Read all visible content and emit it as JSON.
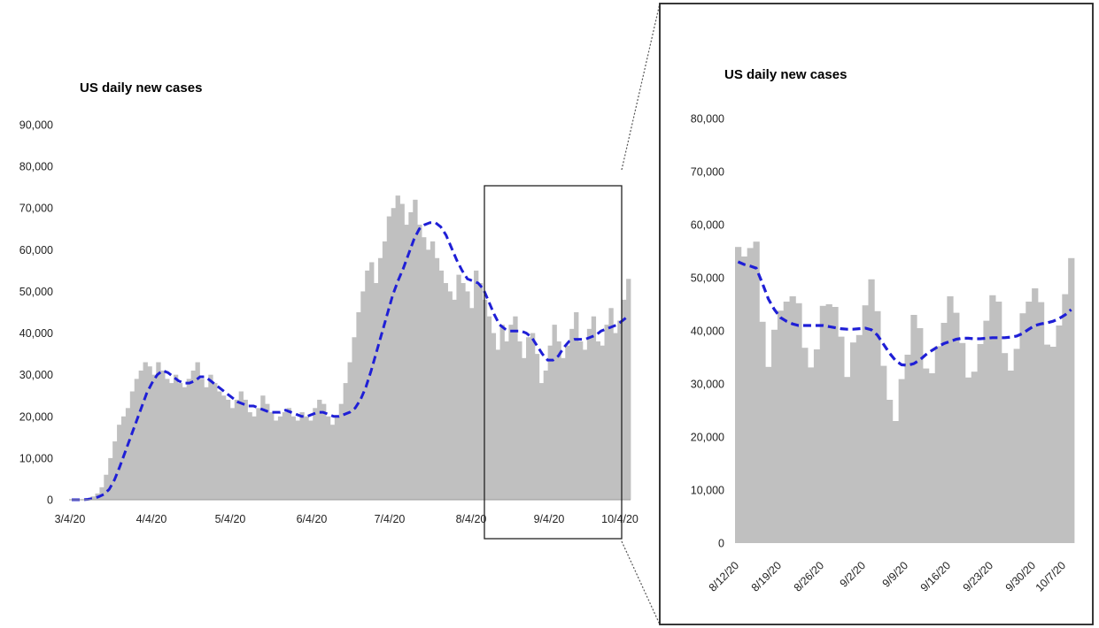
{
  "chart_data": [
    {
      "type": "bar",
      "title": "US daily new cases",
      "xlabel": "",
      "ylabel": "",
      "ylim": [
        0,
        90000
      ],
      "y_ticks": [
        0,
        10000,
        20000,
        30000,
        40000,
        50000,
        60000,
        70000,
        80000,
        90000
      ],
      "y_tick_labels": [
        "0",
        "10,000",
        "20,000",
        "30,000",
        "40,000",
        "50,000",
        "60,000",
        "70,000",
        "80,000",
        "90,000"
      ],
      "x_tick_labels": [
        "3/4/20",
        "4/4/20",
        "5/4/20",
        "6/4/20",
        "7/4/20",
        "8/4/20",
        "9/4/20",
        "10/4/20"
      ],
      "x_start": "3/4/20",
      "x_end": "10/8/20",
      "grid": false,
      "bar_color": "#c0c0c0",
      "series": [
        {
          "values": [
            0,
            0,
            0,
            100,
            300,
            800,
            1500,
            3000,
            6000,
            10000,
            14000,
            18000,
            20000,
            22000,
            26000,
            29000,
            31000,
            33000,
            32000,
            30000,
            33000,
            31000,
            29000,
            28000,
            30000,
            28000,
            27000,
            29000,
            31000,
            33000,
            29000,
            27000,
            30000,
            28000,
            26000,
            25000,
            24000,
            22000,
            24000,
            26000,
            24000,
            21000,
            20000,
            22000,
            25000,
            23000,
            21000,
            19000,
            20000,
            21000,
            22000,
            20000,
            19000,
            21000,
            20000,
            19000,
            22000,
            24000,
            23000,
            20000,
            18000,
            20000,
            23000,
            28000,
            33000,
            39000,
            45000,
            50000,
            55000,
            57000,
            52000,
            58000,
            62000,
            68000,
            70000,
            73000,
            71000,
            66000,
            69000,
            72000,
            66000,
            63000,
            60000,
            62000,
            58000,
            55000,
            52000,
            50000,
            48000,
            54000,
            52000,
            50000,
            46000,
            55000,
            52000,
            48000,
            44000,
            40000,
            36000,
            42000,
            38000,
            42000,
            44000,
            38000,
            34000,
            39000,
            40000,
            35000,
            28000,
            31000,
            37000,
            42000,
            38000,
            34000,
            37000,
            41000,
            45000,
            38000,
            36000,
            41000,
            44000,
            38000,
            37000,
            42000,
            46000,
            40000,
            43000,
            48000,
            53000
          ]
        },
        {
          "name": "",
          "type": "line",
          "style": "dashed",
          "color": "#1f1fd6",
          "values": [
            0,
            0,
            0,
            100,
            300,
            700,
            1300,
            2500,
            4800,
            8000,
            11500,
            15000,
            18500,
            22000,
            25500,
            28000,
            30000,
            31000,
            30500,
            29500,
            28500,
            28000,
            28000,
            28500,
            29500,
            29500,
            28500,
            27500,
            26500,
            25500,
            24500,
            23500,
            23000,
            22500,
            22500,
            22000,
            21500,
            21000,
            21000,
            21000,
            21500,
            21000,
            20500,
            20000,
            20000,
            20500,
            21000,
            21000,
            20500,
            20000,
            20000,
            20500,
            21000,
            22000,
            24000,
            27000,
            31000,
            35500,
            40000,
            44500,
            49000,
            52500,
            55500,
            59000,
            62500,
            65000,
            66000,
            66500,
            66500,
            65500,
            63500,
            60500,
            57500,
            55000,
            53000,
            52500,
            52000,
            50500,
            47500,
            44500,
            42000,
            41000,
            40500,
            40500,
            40500,
            40000,
            39000,
            37000,
            35000,
            33500,
            33500,
            34500,
            36500,
            38000,
            38500,
            38500,
            38500,
            39000,
            39500,
            40500,
            41000,
            41500,
            42000,
            43000,
            44000
          ]
        }
      ]
    },
    {
      "type": "bar",
      "title": "US daily new cases",
      "xlabel": "",
      "ylabel": "",
      "ylim": [
        0,
        80000
      ],
      "y_ticks": [
        0,
        10000,
        20000,
        30000,
        40000,
        50000,
        60000,
        70000,
        80000
      ],
      "y_tick_labels": [
        "0",
        "10,000",
        "20,000",
        "30,000",
        "40,000",
        "50,000",
        "60,000",
        "70,000",
        "80,000"
      ],
      "x_tick_labels": [
        "8/12/20",
        "8/19/20",
        "8/26/20",
        "9/2/20",
        "9/9/20",
        "9/16/20",
        "9/23/20",
        "9/30/20",
        "10/7/20"
      ],
      "x_start": "8/12/20",
      "x_end": "10/8/20",
      "grid": false,
      "bar_color": "#c0c0c0",
      "series": [
        {
          "values": [
            55800,
            54000,
            55600,
            56800,
            41700,
            33200,
            40200,
            43800,
            45500,
            46500,
            45200,
            36800,
            33100,
            36500,
            44700,
            45000,
            44500,
            38900,
            31300,
            37800,
            39200,
            44800,
            49700,
            43700,
            33400,
            27000,
            23000,
            30900,
            35500,
            43000,
            40500,
            32900,
            32000,
            37100,
            41500,
            46500,
            43400,
            37700,
            31200,
            32300,
            37500,
            41900,
            46700,
            45500,
            35800,
            32500,
            36600,
            43300,
            45500,
            48000,
            45400,
            37400,
            37000,
            41000,
            46900,
            53700
          ]
        },
        {
          "name": "",
          "type": "line",
          "style": "dashed",
          "color": "#1f1fd6",
          "values": [
            53000,
            52500,
            52200,
            51800,
            49000,
            46000,
            44000,
            42500,
            41800,
            41300,
            41000,
            41000,
            41000,
            41000,
            41000,
            40800,
            40600,
            40400,
            40300,
            40300,
            40400,
            40500,
            40200,
            39200,
            37500,
            35800,
            34400,
            33600,
            33500,
            33800,
            34500,
            35500,
            36300,
            37000,
            37600,
            38000,
            38400,
            38600,
            38600,
            38500,
            38500,
            38600,
            38700,
            38700,
            38700,
            38800,
            39000,
            39500,
            40300,
            41000,
            41300,
            41500,
            41800,
            42300,
            43000,
            44000
          ]
        }
      ]
    }
  ]
}
